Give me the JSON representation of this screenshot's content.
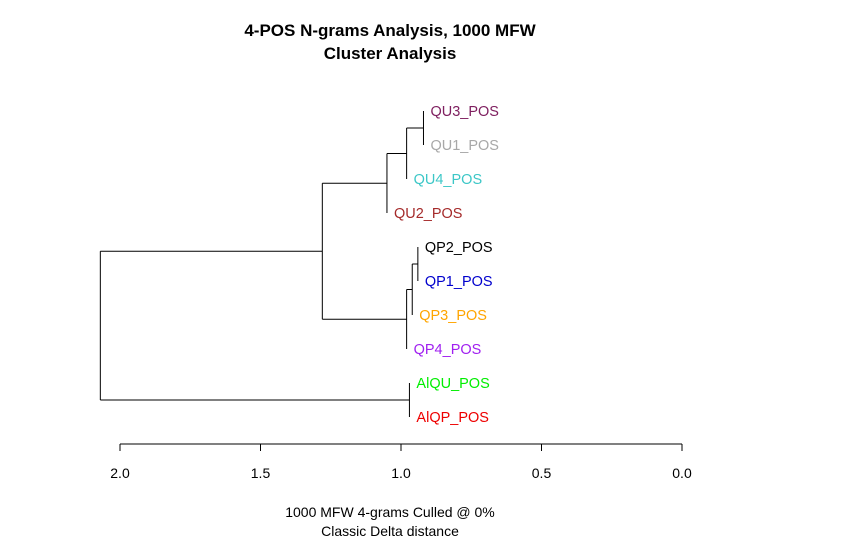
{
  "chart_data": {
    "type": "dendrogram",
    "title": "4-POS N-grams Analysis, 1000 MFW",
    "subtitle": "Cluster Analysis",
    "xlabel": "1000 MFW 4-grams Culled @ 0%",
    "xlabel2": "Classic Delta distance",
    "xlim": [
      2.0,
      0.0
    ],
    "ticks": [
      2.0,
      1.5,
      1.0,
      0.5,
      0.0
    ],
    "tick_labels": [
      "2.0",
      "1.5",
      "1.0",
      "0.5",
      "0.0"
    ],
    "leaves": [
      {
        "label": "QU3_POS",
        "color": "#7f2060"
      },
      {
        "label": "QU1_POS",
        "color": "#a8a8a8"
      },
      {
        "label": "QU4_POS",
        "color": "#3cc7c7"
      },
      {
        "label": "QU2_POS",
        "color": "#a52a2a"
      },
      {
        "label": "QP2_POS",
        "color": "#000000"
      },
      {
        "label": "QP1_POS",
        "color": "#0000cd"
      },
      {
        "label": "QP3_POS",
        "color": "#ffa500"
      },
      {
        "label": "QP4_POS",
        "color": "#a020f0"
      },
      {
        "label": "AlQU_POS",
        "color": "#00ee00"
      },
      {
        "label": "AlQP_POS",
        "color": "#ee0000"
      }
    ],
    "merges": [
      {
        "id": "m1",
        "children": [
          0,
          1
        ],
        "height": 0.92
      },
      {
        "id": "m2",
        "children": [
          "m1",
          2
        ],
        "height": 0.98
      },
      {
        "id": "m3",
        "children": [
          "m2",
          3
        ],
        "height": 1.05
      },
      {
        "id": "m4",
        "children": [
          4,
          5
        ],
        "height": 0.94
      },
      {
        "id": "m5",
        "children": [
          "m4",
          6
        ],
        "height": 0.96
      },
      {
        "id": "m6",
        "children": [
          "m5",
          7
        ],
        "height": 0.98
      },
      {
        "id": "m7",
        "children": [
          "m3",
          "m6"
        ],
        "height": 1.28
      },
      {
        "id": "m8",
        "children": [
          8,
          9
        ],
        "height": 0.97
      },
      {
        "id": "m9",
        "children": [
          "m7",
          "m8"
        ],
        "height": 2.07
      }
    ]
  }
}
